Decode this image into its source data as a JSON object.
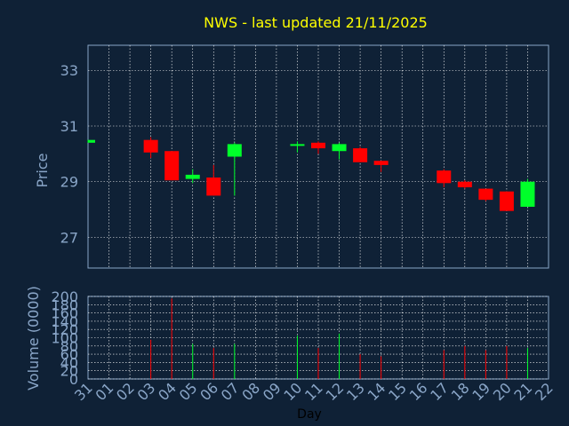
{
  "chart_data": {
    "type": "candlestick",
    "title": "NWS - last updated 21/11/2025",
    "xlabel": "Day",
    "ylabel": "Price",
    "volume_label": "Volume (0000)",
    "ylim": [
      25.9,
      33.9
    ],
    "volume_ylim": [
      0,
      200
    ],
    "grid": true,
    "colors": {
      "background": "#0f2136",
      "title": "#ffff00",
      "axis_text": "#8aa6c8",
      "grid": "#ffffff",
      "up": "#00ff2a",
      "down": "#ff0000"
    },
    "x_ticks": [
      "31",
      "01",
      "02",
      "03",
      "04",
      "05",
      "06",
      "07",
      "08",
      "09",
      "10",
      "11",
      "12",
      "13",
      "14",
      "15",
      "16",
      "17",
      "18",
      "19",
      "20",
      "21",
      "22"
    ],
    "y_ticks": [
      "27",
      "29",
      "31",
      "33"
    ],
    "volume_ticks": [
      "0",
      "20",
      "40",
      "60",
      "80",
      "100",
      "120",
      "140",
      "160",
      "180",
      "200"
    ],
    "candles": [
      {
        "day": "31",
        "open": 30.4,
        "close": 30.5,
        "high": 30.5,
        "low": 30.4,
        "volume": 0
      },
      {
        "day": "03",
        "open": 30.5,
        "close": 30.05,
        "high": 30.6,
        "low": 29.85,
        "volume": 95
      },
      {
        "day": "04",
        "open": 30.1,
        "close": 29.05,
        "high": 30.1,
        "low": 29.05,
        "volume": 195
      },
      {
        "day": "05",
        "open": 29.1,
        "close": 29.25,
        "high": 29.45,
        "low": 28.95,
        "volume": 85
      },
      {
        "day": "06",
        "open": 29.15,
        "close": 28.5,
        "high": 29.6,
        "low": 28.5,
        "volume": 75
      },
      {
        "day": "07",
        "open": 29.9,
        "close": 30.35,
        "high": 30.4,
        "low": 28.5,
        "volume": 85
      },
      {
        "day": "10",
        "open": 30.3,
        "close": 30.35,
        "high": 30.45,
        "low": 30.05,
        "volume": 105
      },
      {
        "day": "11",
        "open": 30.4,
        "close": 30.2,
        "high": 30.45,
        "low": 30.0,
        "volume": 75
      },
      {
        "day": "12",
        "open": 30.1,
        "close": 30.35,
        "high": 30.4,
        "low": 29.8,
        "volume": 110
      },
      {
        "day": "13",
        "open": 30.2,
        "close": 29.7,
        "high": 30.25,
        "low": 29.7,
        "volume": 60
      },
      {
        "day": "14",
        "open": 29.75,
        "close": 29.6,
        "high": 29.75,
        "low": 29.35,
        "volume": 55
      },
      {
        "day": "17",
        "open": 29.4,
        "close": 28.95,
        "high": 29.45,
        "low": 28.8,
        "volume": 70
      },
      {
        "day": "18",
        "open": 29.0,
        "close": 28.8,
        "high": 29.05,
        "low": 28.75,
        "volume": 80
      },
      {
        "day": "19",
        "open": 28.75,
        "close": 28.35,
        "high": 28.75,
        "low": 28.3,
        "volume": 70
      },
      {
        "day": "20",
        "open": 28.65,
        "close": 27.95,
        "high": 28.65,
        "low": 27.95,
        "volume": 80
      },
      {
        "day": "21",
        "open": 28.1,
        "close": 29.0,
        "high": 29.1,
        "low": 28.1,
        "volume": 75
      }
    ]
  }
}
